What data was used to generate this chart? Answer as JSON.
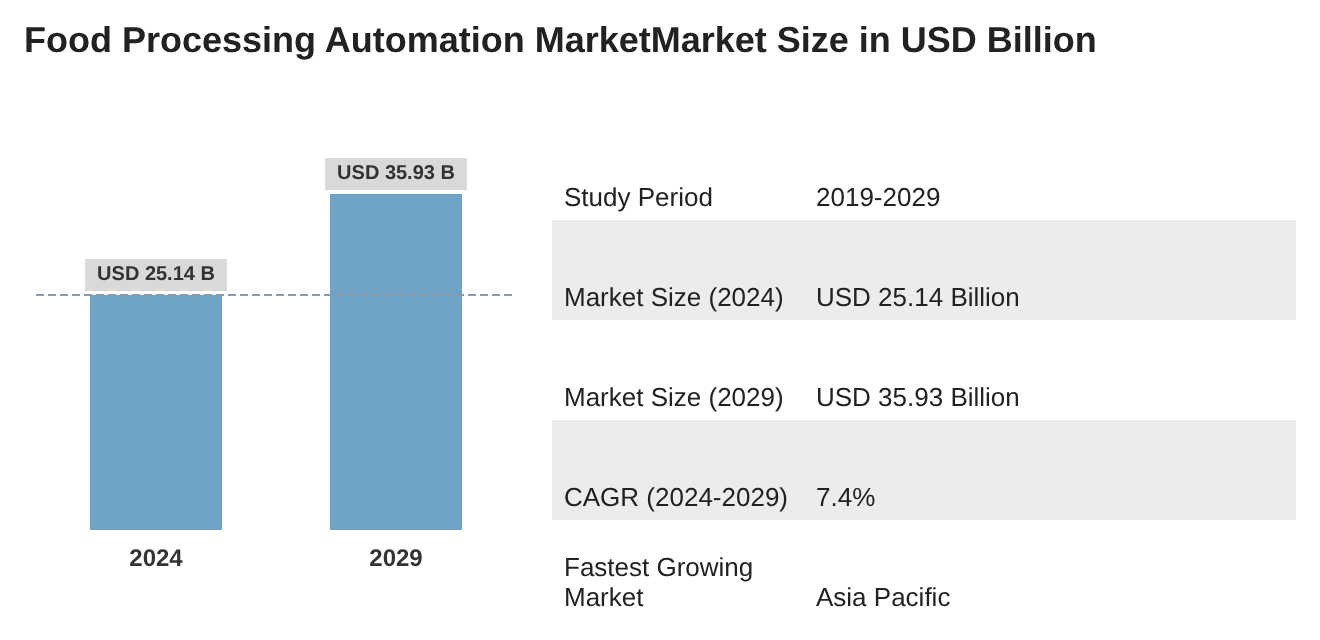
{
  "chart_data": [
    {
      "type": "bar",
      "title": "Food Processing Automation MarketMarket Size in USD Billion",
      "categories": [
        "2024",
        "2029"
      ],
      "values": [
        25.14,
        35.93
      ],
      "value_labels": [
        "USD 25.14 B",
        "USD 35.93 B"
      ],
      "color": "#6ea3c6",
      "ref_lines": [
        {
          "axis": "y",
          "value": 25.14,
          "color": "#8a9aa8",
          "line_style": "dashed"
        }
      ]
    },
    {
      "type": "other",
      "annotations": [
        "Study Period",
        "2019-2029",
        "Market Size (2024)",
        "USD 25.14 Billion",
        "Market Size (2029)",
        "USD 35.93 Billion",
        "CAGR (2024-2029)",
        "7.4%",
        "Fastest Growing Market",
        "Asia Pacific"
      ]
    }
  ]
}
